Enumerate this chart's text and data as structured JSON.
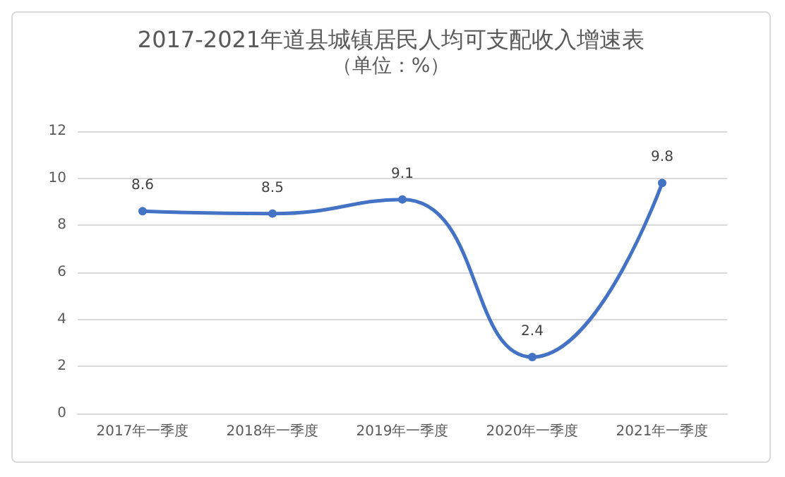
{
  "chart_data": {
    "type": "line",
    "title": "2017-2021年道县城镇居民人均可支配收入增速表",
    "subtitle": "（单位：%）",
    "categories": [
      "2017年一季度",
      "2018年一季度",
      "2019年一季度",
      "2020年一季度",
      "2021年一季度"
    ],
    "series": [
      {
        "color": "#4472c4",
        "values": [
          8.6,
          8.5,
          9.1,
          2.4,
          9.8
        ]
      }
    ],
    "ylim": [
      0,
      12
    ],
    "yticks": [
      0,
      2,
      4,
      6,
      8,
      10,
      12
    ],
    "grid": "y",
    "marker": "circle",
    "line_style": "solid",
    "data_labels": true
  }
}
